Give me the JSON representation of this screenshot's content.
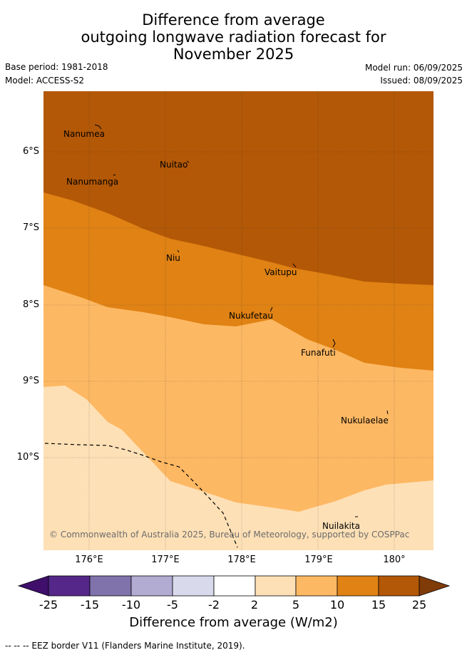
{
  "header": {
    "title_lines": [
      "Difference from average",
      "outgoing longwave radiation forecast for",
      "November 2025"
    ],
    "base_period": "Base period: 1981-2018",
    "model": "Model: ACCESS-S2",
    "model_run": "Model run: 06/09/2025",
    "issued": "Issued: 08/09/2025"
  },
  "map": {
    "lat_labels": [
      "6°S",
      "7°S",
      "8°S",
      "9°S",
      "10°S"
    ],
    "lon_labels": [
      "176°E",
      "177°E",
      "178°E",
      "179°E",
      "180°"
    ],
    "places": [
      "Nanumea",
      "Nuitao",
      "Nanumanga",
      "Niu",
      "Vaitupu",
      "Nukufetau",
      "Funafuti",
      "Nukulaelae",
      "Nuilakita"
    ],
    "copyright": "© Commonwealth of Australia 2025, Bureau of Meteorology, supported by COSPPac",
    "colors": {
      "band_15_25": "#b35806",
      "band_10_15": "#e08214",
      "band_5_10": "#fdb863",
      "band_2_5": "#fee0b6"
    }
  },
  "colorbar": {
    "ticks": [
      "-25",
      "-15",
      "-10",
      "-5",
      "-2",
      "2",
      "5",
      "10",
      "15",
      "25"
    ],
    "colors": [
      "#3f0f6b",
      "#542788",
      "#8073ac",
      "#b2abd2",
      "#d8daeb",
      "#ffffff",
      "#fee0b6",
      "#fdb863",
      "#e08214",
      "#b35806",
      "#7f3b08"
    ],
    "title": "Difference from average (W/m2)"
  },
  "footnote": "--  --  -- EEZ border V11 (Flanders Marine Institute, 2019)."
}
